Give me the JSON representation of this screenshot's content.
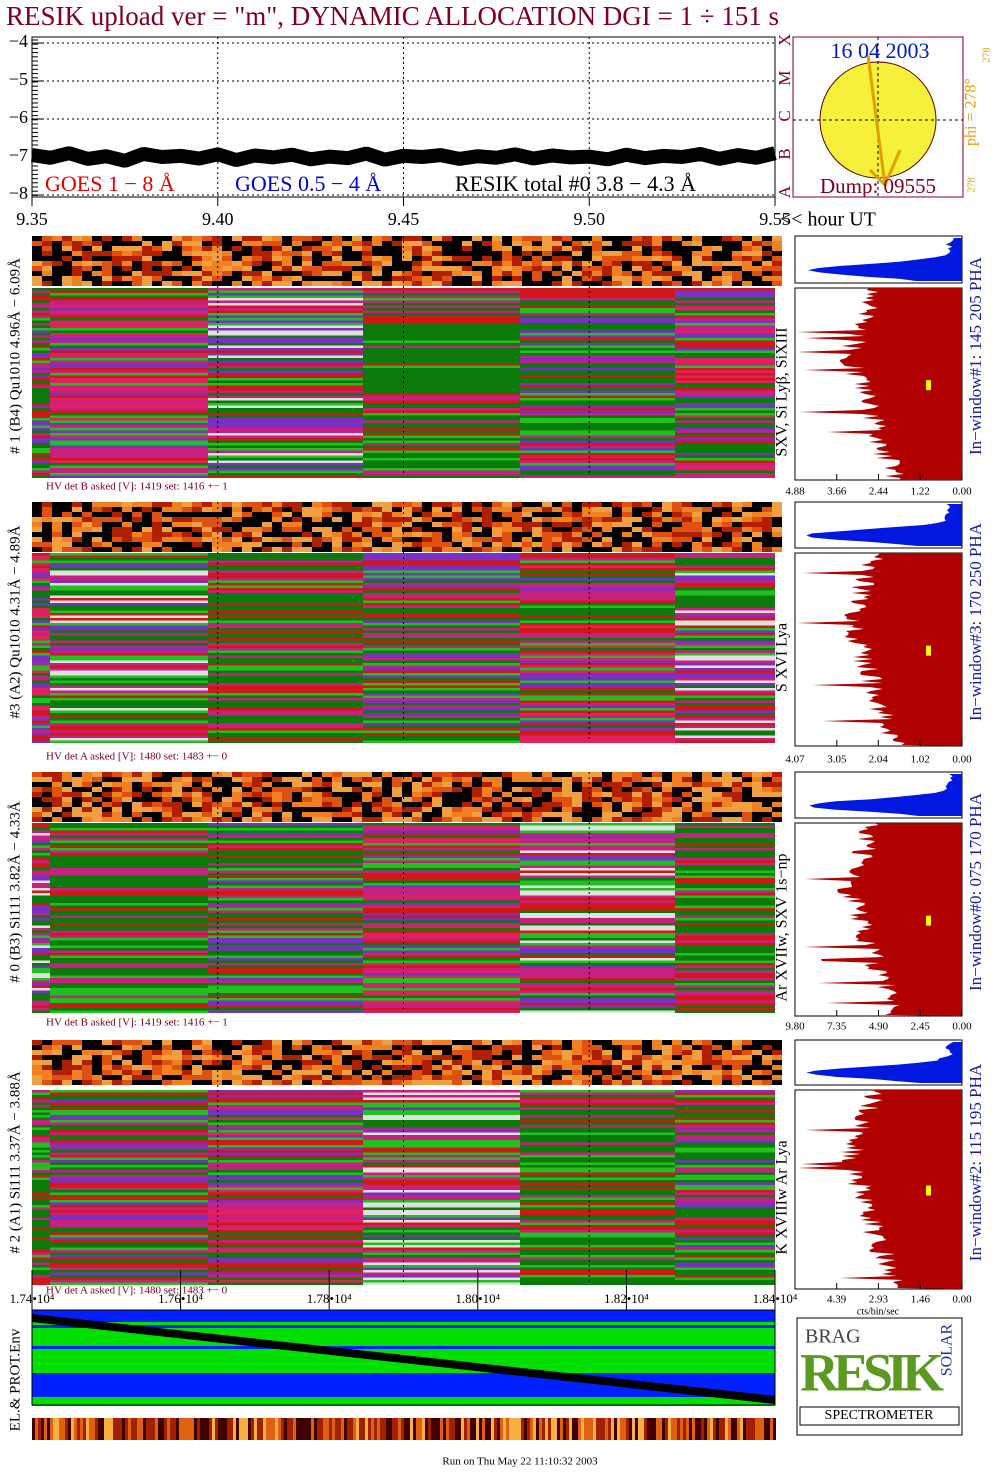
{
  "title": "RESIK upload ver = \"m\", DYNAMIC ALLOCATION  DGI =   1 ÷ 151 s",
  "chart_data": [
    {
      "type": "line",
      "xlim": [
        9.35,
        9.55
      ],
      "xticks": [
        9.35,
        {
          "value": 9.4,
          "label": "9.40"
        },
        9.45,
        {
          "value": 9.5,
          "label": "9.50"
        },
        9.55
      ],
      "xlabel": "<< hour UT",
      "ylim": [
        -8,
        -4
      ],
      "yticks": [
        {
          "value": -8,
          "label": "−8"
        },
        {
          "value": -7,
          "label": "−7"
        },
        {
          "value": -6,
          "label": "−6"
        },
        {
          "value": -5,
          "label": "−5"
        },
        {
          "value": -4,
          "label": "−4"
        }
      ],
      "grid": true,
      "x": [
        9.35,
        9.355,
        9.36,
        9.365,
        9.37,
        9.375,
        9.38,
        9.385,
        9.39,
        9.395,
        9.4,
        9.405,
        9.41,
        9.415,
        9.42,
        9.425,
        9.43,
        9.435,
        9.44,
        9.445,
        9.45,
        9.455,
        9.46,
        9.465,
        9.47,
        9.475,
        9.48,
        9.485,
        9.49,
        9.495,
        9.5,
        9.505,
        9.51,
        9.515,
        9.52,
        9.525,
        9.53,
        9.535,
        9.54,
        9.545,
        9.55
      ],
      "series": [
        {
          "name": "RESIK total #0  3.8 − 4.3 Å",
          "color": "#000000",
          "values": [
            -6.95,
            -7.02,
            -6.9,
            -7.05,
            -6.98,
            -7.1,
            -6.92,
            -7.0,
            -6.97,
            -7.04,
            -6.93,
            -7.08,
            -6.96,
            -7.01,
            -6.94,
            -7.06,
            -6.99,
            -7.03,
            -6.91,
            -7.07,
            -6.97,
            -7.0,
            -6.95,
            -7.05,
            -6.98,
            -7.02,
            -6.93,
            -7.04,
            -6.96,
            -7.01,
            -6.99,
            -7.06,
            -6.94,
            -7.03,
            -6.97,
            -7.0,
            -6.92,
            -7.05,
            -6.95,
            -7.02,
            -6.9
          ]
        }
      ],
      "annotations": [
        {
          "text": "GOES 1 − 8 Å",
          "color": "#e00000"
        },
        {
          "text": "GOES 0.5 − 4 Å",
          "color": "#0000d0"
        }
      ]
    }
  ],
  "sun_panel": {
    "date": "16 04 2003",
    "dump": "Dump: 09555",
    "phi": "phi = 278°",
    "phi_marks": [
      "278",
      "278"
    ],
    "classes": [
      "X",
      "M",
      "C",
      "B",
      "A"
    ]
  },
  "panels": [
    {
      "label": "# 1 (B4) Qu1010 4.96Å − 6.09Å",
      "hv": "HV det B asked [V]:  1419 set:  1416 +−    1",
      "lines": "SXV, Si Lyβ, SiXIII",
      "window": "In−window#1:  145 205 PHA",
      "hist_xlim": [
        4.88,
        0
      ],
      "hist_xticks": [
        4.88,
        3.66,
        2.44,
        1.22,
        {
          "value": 0,
          "label": "0.00"
        }
      ]
    },
    {
      "label": "#3 (A2) Qu1010  4.31Å − 4.89Å",
      "hv": "HV det A asked [V]:  1480 set:  1483 +−    0",
      "lines": "S XVI Lya",
      "window": "In−window#3:  170 250 PHA",
      "hist_xlim": [
        4.07,
        0
      ],
      "hist_xticks": [
        4.07,
        3.05,
        2.04,
        1.02,
        {
          "value": 0,
          "label": "0.00"
        }
      ]
    },
    {
      "label": "# 0 (B3) Si111  3.82Å − 4.33Å",
      "hv": "HV det B asked [V]:  1419 set:  1416 +−    1",
      "lines": "Ar XVIIw, SXV 1s−np",
      "window": "In−window#0:  075 170 PHA",
      "hist_xlim": [
        9.8,
        0
      ],
      "hist_xticks": [
        {
          "value": 9.8,
          "label": "9.80"
        },
        7.35,
        {
          "value": 4.9,
          "label": "4.90"
        },
        2.45,
        {
          "value": 0,
          "label": "0.00"
        }
      ]
    },
    {
      "label": "# 2 (A1) Si111  3.37Å − 3.88Å",
      "hv": "HV det A asked [V]:  1480 set:  1483 +−    0",
      "lines": "K XVIIIw  Ar Lya",
      "window": "In−window#2:  115 195 PHA",
      "hist_xlim": [
        5.85,
        0
      ],
      "hist_xticks": [
        4.39,
        2.93,
        1.46,
        {
          "value": 0,
          "label": "0.00"
        }
      ]
    }
  ],
  "hist_unit": "cts/bin/sec",
  "env": {
    "label": "EL.& PROT.Env",
    "xlim": [
      17400,
      18400
    ],
    "xticks": [
      {
        "value": 17400,
        "label": "1.74•10⁴"
      },
      {
        "value": 17600,
        "label": "1.76•10⁴"
      },
      {
        "value": 17800,
        "label": "1.78•10⁴"
      },
      {
        "value": 18000,
        "label": "1.80•10⁴"
      },
      {
        "value": 18200,
        "label": "1.82•10⁴"
      },
      {
        "value": 18400,
        "label": "1.84•10⁴"
      }
    ]
  },
  "logo": {
    "top": "BRAG",
    "main": "RESIK",
    "side": "SOLAR",
    "bottom": "SPECTROMETER"
  },
  "footer": "Run on Thu May 22 11:10:32 2003"
}
